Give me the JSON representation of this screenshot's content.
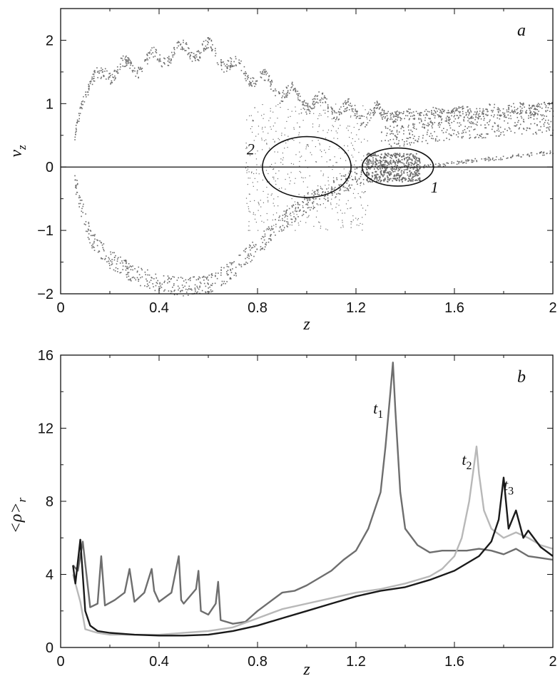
{
  "chart_data": [
    {
      "panel": "a",
      "type": "scatter",
      "xlabel": "z",
      "ylabel": "v_z",
      "xlim": [
        0,
        2
      ],
      "ylim": [
        -2,
        2.5
      ],
      "xticks": [
        "0",
        "0.4",
        "0.8",
        "1.2",
        "1.6",
        "2"
      ],
      "yticks": [
        "−2",
        "−1",
        "0",
        "1",
        "2"
      ],
      "point_color": "#6a6a6a",
      "zero_line": true,
      "phase_envelope": {
        "upper_branch": [
          [
            0.05,
            0.4
          ],
          [
            0.08,
            1.0
          ],
          [
            0.14,
            1.45
          ],
          [
            0.2,
            1.52
          ],
          [
            0.3,
            1.6
          ],
          [
            0.4,
            1.72
          ],
          [
            0.5,
            1.85
          ],
          [
            0.6,
            1.85
          ],
          [
            0.7,
            1.6
          ],
          [
            0.8,
            1.4
          ],
          [
            0.9,
            1.2
          ],
          [
            1.0,
            1.05
          ],
          [
            1.1,
            0.95
          ],
          [
            1.2,
            0.85
          ],
          [
            1.4,
            0.82
          ],
          [
            1.6,
            0.85
          ],
          [
            1.8,
            0.9
          ],
          [
            2.0,
            0.95
          ]
        ],
        "lower_branch": [
          [
            0.05,
            -0.1
          ],
          [
            0.08,
            -0.6
          ],
          [
            0.12,
            -1.1
          ],
          [
            0.2,
            -1.45
          ],
          [
            0.3,
            -1.7
          ],
          [
            0.4,
            -1.82
          ],
          [
            0.5,
            -1.88
          ],
          [
            0.6,
            -1.85
          ],
          [
            0.7,
            -1.6
          ],
          [
            0.8,
            -1.25
          ],
          [
            0.9,
            -0.85
          ],
          [
            1.0,
            -0.55
          ],
          [
            1.1,
            -0.35
          ],
          [
            1.2,
            -0.15
          ],
          [
            1.25,
            0.0
          ]
        ],
        "ejected_streams": [
          [
            1.4,
            0.5
          ],
          [
            1.6,
            0.62
          ],
          [
            1.8,
            0.66
          ],
          [
            2.0,
            0.7
          ]
        ],
        "lower_stream": [
          [
            1.5,
            0.02
          ],
          [
            1.7,
            0.12
          ],
          [
            1.9,
            0.2
          ],
          [
            2.0,
            0.24
          ]
        ]
      },
      "annotations": [
        {
          "label": "2",
          "cx": 1.0,
          "cy": 0.0,
          "rx": 0.18,
          "ry": 0.48
        },
        {
          "label": "1",
          "cx": 1.37,
          "cy": 0.0,
          "rx": 0.145,
          "ry": 0.3
        }
      ],
      "panel_label": "a"
    },
    {
      "panel": "b",
      "type": "line",
      "xlabel": "z",
      "ylabel": "<ρ>_r",
      "xlim": [
        0,
        2
      ],
      "ylim": [
        0,
        16
      ],
      "xticks": [
        "0",
        "0.4",
        "0.8",
        "1.2",
        "1.6",
        "2"
      ],
      "yticks": [
        "0",
        "4",
        "8",
        "12",
        "16"
      ],
      "series": [
        {
          "name": "t1",
          "color": "#6e6e6e",
          "x": [
            0.05,
            0.07,
            0.09,
            0.12,
            0.15,
            0.165,
            0.18,
            0.22,
            0.26,
            0.28,
            0.3,
            0.34,
            0.37,
            0.38,
            0.4,
            0.45,
            0.48,
            0.49,
            0.5,
            0.55,
            0.56,
            0.57,
            0.6,
            0.63,
            0.64,
            0.65,
            0.7,
            0.75,
            0.8,
            0.85,
            0.9,
            0.95,
            1.0,
            1.05,
            1.1,
            1.15,
            1.2,
            1.25,
            1.3,
            1.32,
            1.34,
            1.35,
            1.36,
            1.38,
            1.4,
            1.45,
            1.5,
            1.55,
            1.6,
            1.65,
            1.7,
            1.75,
            1.8,
            1.85,
            1.9,
            1.95,
            2.0
          ],
          "y": [
            4.5,
            4.2,
            5.8,
            2.2,
            2.4,
            5.0,
            2.3,
            2.6,
            3.0,
            4.3,
            2.5,
            3.0,
            4.3,
            3.1,
            2.5,
            3.0,
            5.0,
            2.6,
            2.4,
            3.2,
            4.2,
            2.0,
            1.8,
            2.4,
            3.6,
            1.5,
            1.3,
            1.4,
            2.0,
            2.5,
            3.0,
            3.1,
            3.4,
            3.8,
            4.2,
            4.8,
            5.3,
            6.5,
            8.5,
            11.0,
            14.0,
            15.6,
            13.0,
            8.5,
            6.5,
            5.6,
            5.2,
            5.3,
            5.3,
            5.3,
            5.4,
            5.3,
            5.1,
            5.4,
            5.0,
            4.9,
            4.8
          ]
        },
        {
          "name": "t2",
          "color": "#b8b8b8",
          "x": [
            0.05,
            0.08,
            0.1,
            0.15,
            0.2,
            0.3,
            0.4,
            0.5,
            0.6,
            0.7,
            0.8,
            0.9,
            1.0,
            1.1,
            1.2,
            1.3,
            1.4,
            1.5,
            1.55,
            1.6,
            1.63,
            1.66,
            1.68,
            1.69,
            1.7,
            1.72,
            1.75,
            1.8,
            1.85,
            1.9,
            1.95,
            2.0
          ],
          "y": [
            4.0,
            2.5,
            1.0,
            0.8,
            0.7,
            0.7,
            0.7,
            0.8,
            0.9,
            1.1,
            1.6,
            2.1,
            2.4,
            2.7,
            3.0,
            3.2,
            3.5,
            3.9,
            4.3,
            5.0,
            6.0,
            8.0,
            10.0,
            11.0,
            9.5,
            7.5,
            6.5,
            6.0,
            6.3,
            6.0,
            5.6,
            5.4
          ]
        },
        {
          "name": "t3",
          "color": "#1a1a1a",
          "x": [
            0.05,
            0.06,
            0.08,
            0.1,
            0.12,
            0.15,
            0.2,
            0.3,
            0.4,
            0.5,
            0.6,
            0.7,
            0.8,
            0.9,
            1.0,
            1.1,
            1.2,
            1.3,
            1.4,
            1.5,
            1.6,
            1.7,
            1.75,
            1.78,
            1.8,
            1.82,
            1.85,
            1.88,
            1.9,
            1.95,
            2.0
          ],
          "y": [
            4.5,
            3.5,
            5.9,
            2.0,
            1.2,
            0.9,
            0.8,
            0.7,
            0.65,
            0.65,
            0.7,
            0.9,
            1.2,
            1.6,
            2.0,
            2.4,
            2.8,
            3.1,
            3.3,
            3.7,
            4.2,
            5.0,
            5.8,
            7.0,
            9.3,
            6.5,
            7.5,
            6.0,
            6.4,
            5.5,
            5.0
          ]
        }
      ],
      "series_labels": [
        {
          "name": "t1",
          "base": "t",
          "sub": "1",
          "at": [
            1.27,
            12.8
          ]
        },
        {
          "name": "t2",
          "base": "t",
          "sub": "2",
          "at": [
            1.63,
            10.0
          ]
        },
        {
          "name": "t3",
          "base": "t",
          "sub": "3",
          "at": [
            1.8,
            8.6
          ]
        }
      ],
      "panel_label": "b"
    }
  ],
  "labels": {
    "panel_a": "a",
    "panel_b": "b",
    "a_xlabel": "z",
    "a_ylabel_base": "v",
    "a_ylabel_sub": "z",
    "b_xlabel": "z",
    "b_ylabel_base": "<ρ>",
    "b_ylabel_sub": "r",
    "anno_1": "1",
    "anno_2": "2"
  }
}
